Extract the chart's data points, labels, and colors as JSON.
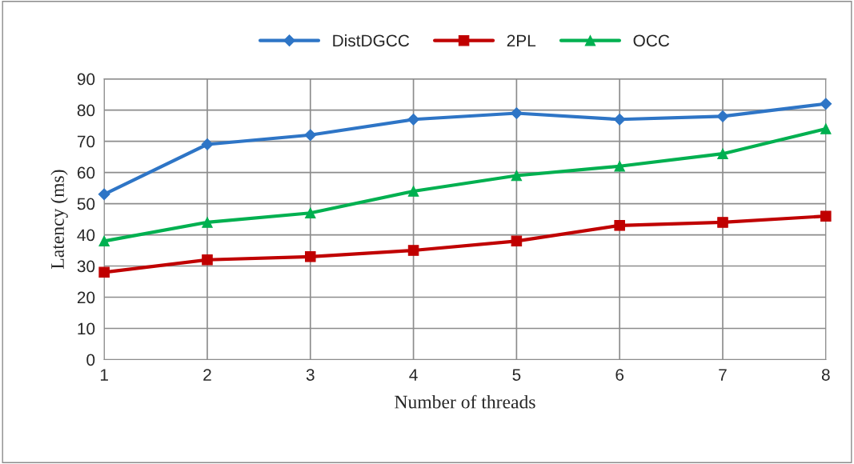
{
  "chart_data": {
    "type": "line",
    "xlabel": "Number of threads",
    "ylabel": "Latency (ms)",
    "x": [
      1,
      2,
      3,
      4,
      5,
      6,
      7,
      8
    ],
    "series": [
      {
        "name": "DistDGCC",
        "color": "#2e75c6",
        "marker": "diamond",
        "values": [
          53,
          69,
          72,
          77,
          79,
          77,
          78,
          82
        ]
      },
      {
        "name": "2PL",
        "color": "#c00000",
        "marker": "square",
        "values": [
          28,
          32,
          33,
          35,
          38,
          43,
          44,
          46
        ]
      },
      {
        "name": "OCC",
        "color": "#00b050",
        "marker": "triangle",
        "values": [
          38,
          44,
          47,
          54,
          59,
          62,
          66,
          74
        ]
      }
    ],
    "xlim": [
      1,
      8
    ],
    "xticks": [
      1,
      2,
      3,
      4,
      5,
      6,
      7,
      8
    ],
    "ylim": [
      0,
      90
    ],
    "yticks": [
      0,
      10,
      20,
      30,
      40,
      50,
      60,
      70,
      80,
      90
    ],
    "grid": true,
    "legend": "top",
    "line_style": "solid"
  }
}
